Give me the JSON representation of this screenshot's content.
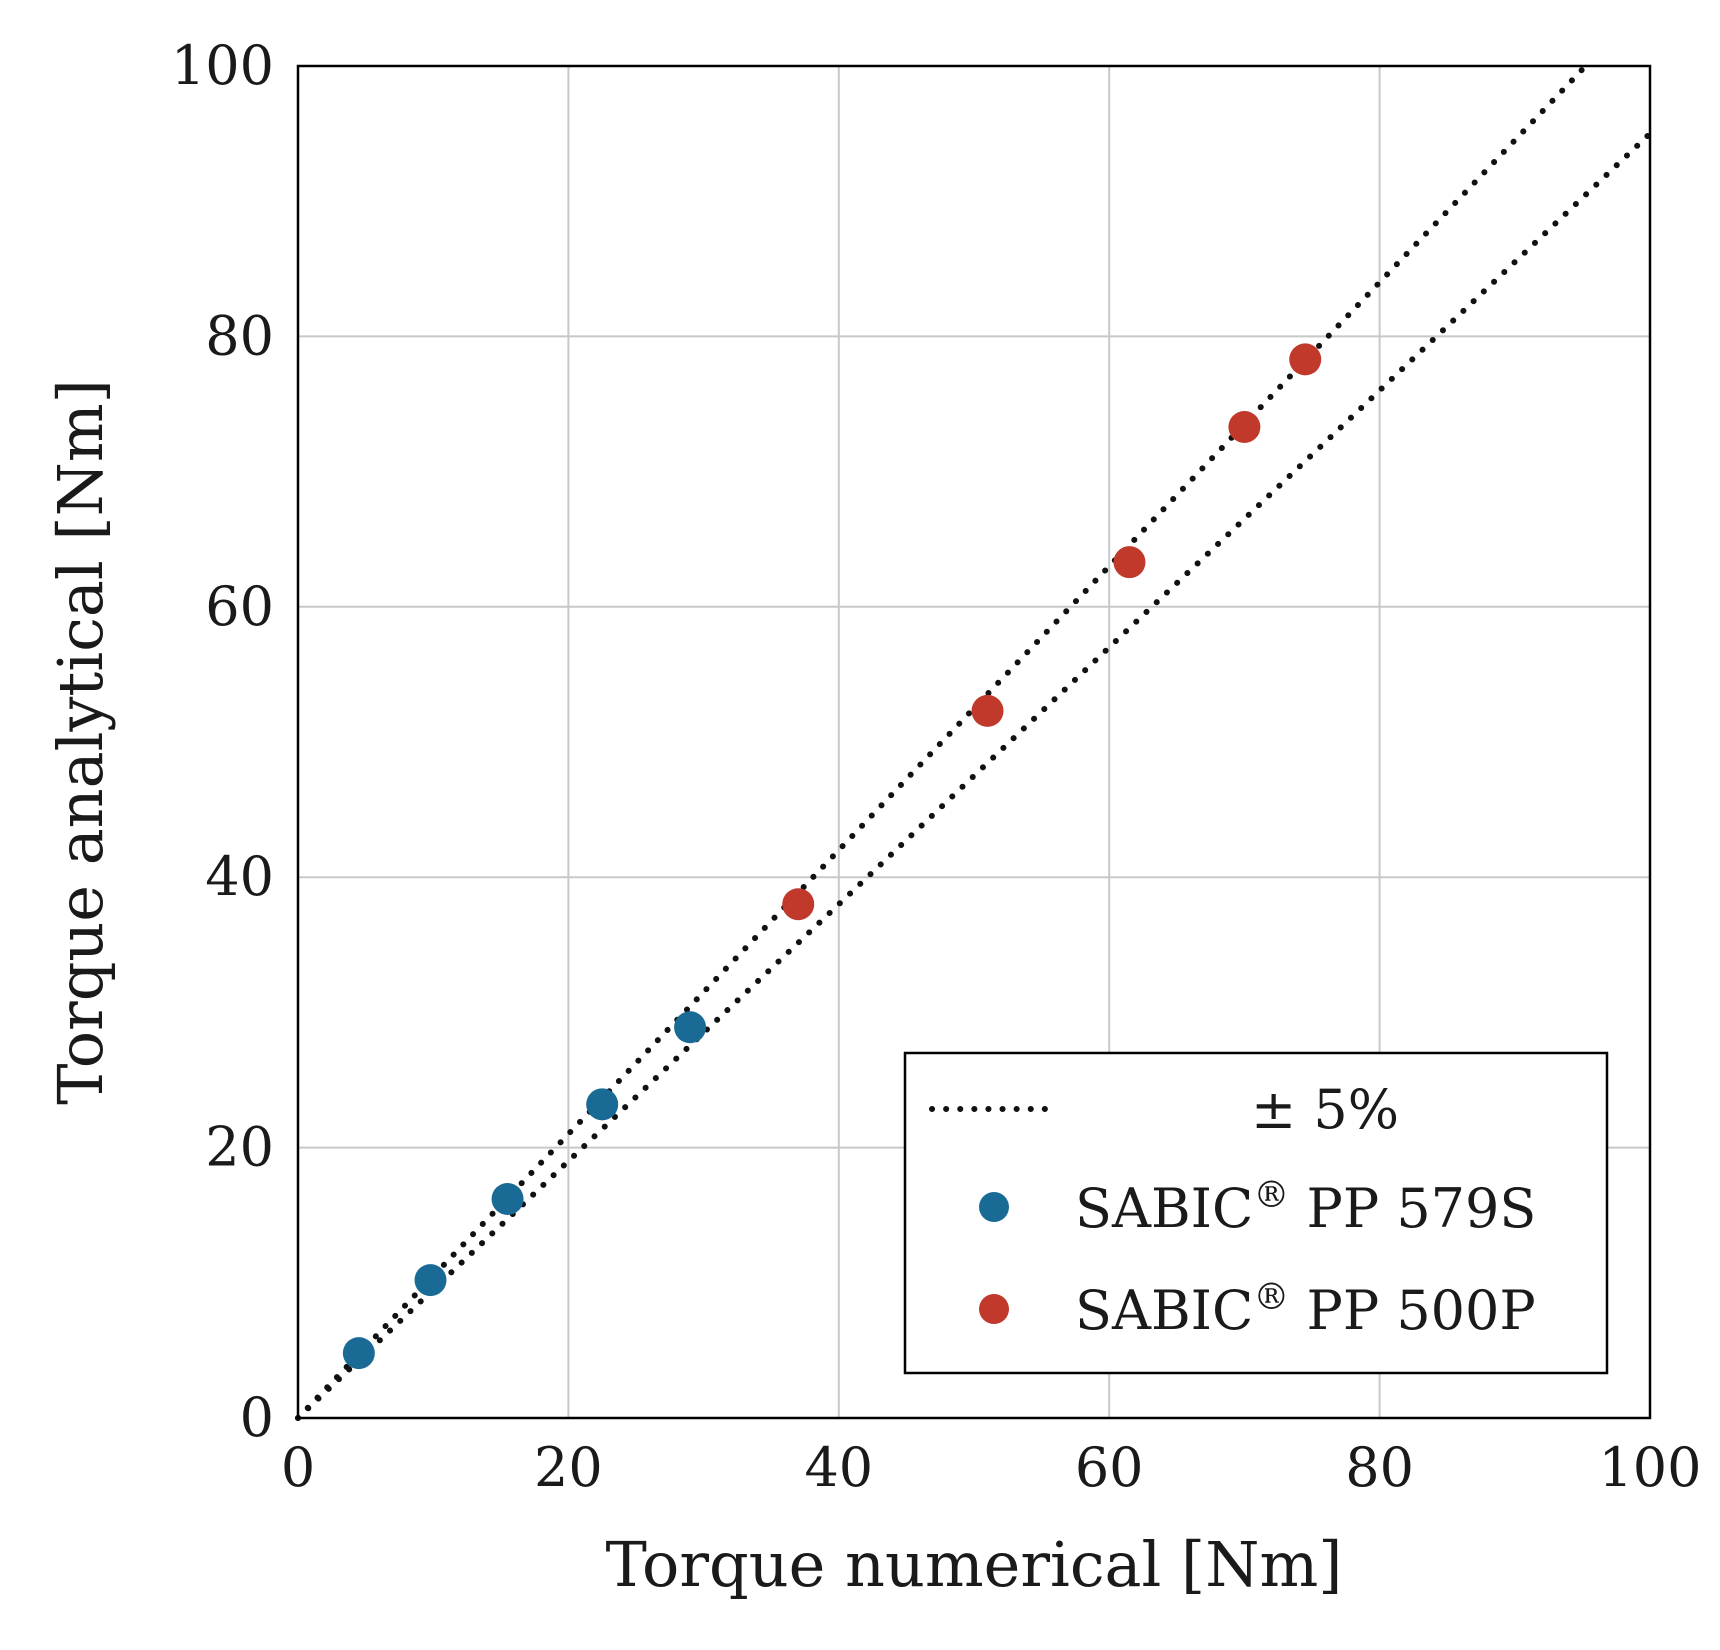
{
  "chart_data": {
    "type": "scatter",
    "title": "",
    "xlabel": "Torque numerical [Nm]",
    "ylabel": "Torque analytical [Nm]",
    "xlim": [
      0,
      100
    ],
    "ylim": [
      0,
      100
    ],
    "xticks": [
      0,
      20,
      40,
      60,
      80,
      100
    ],
    "yticks": [
      0,
      20,
      40,
      60,
      80,
      100
    ],
    "grid": true,
    "legend_position": "bottom-right",
    "reference_lines": {
      "label": "± 5%",
      "upper_slope": 1.05,
      "lower_slope": 0.95,
      "style": "dotted",
      "color": "#111111"
    },
    "series": [
      {
        "name": "SABIC",
        "name_sup": "®",
        "name_rest": " PP 579S",
        "color": "#1a6a96",
        "x": [
          4.5,
          9.8,
          15.5,
          22.5,
          29.0
        ],
        "y": [
          4.8,
          10.2,
          16.2,
          23.2,
          28.9
        ]
      },
      {
        "name": "SABIC",
        "name_sup": "®",
        "name_rest": " PP 500P",
        "color": "#c0392b",
        "x": [
          37.0,
          51.0,
          61.5,
          70.0,
          74.5
        ],
        "y": [
          38.0,
          52.3,
          63.3,
          73.3,
          78.3
        ]
      }
    ]
  }
}
